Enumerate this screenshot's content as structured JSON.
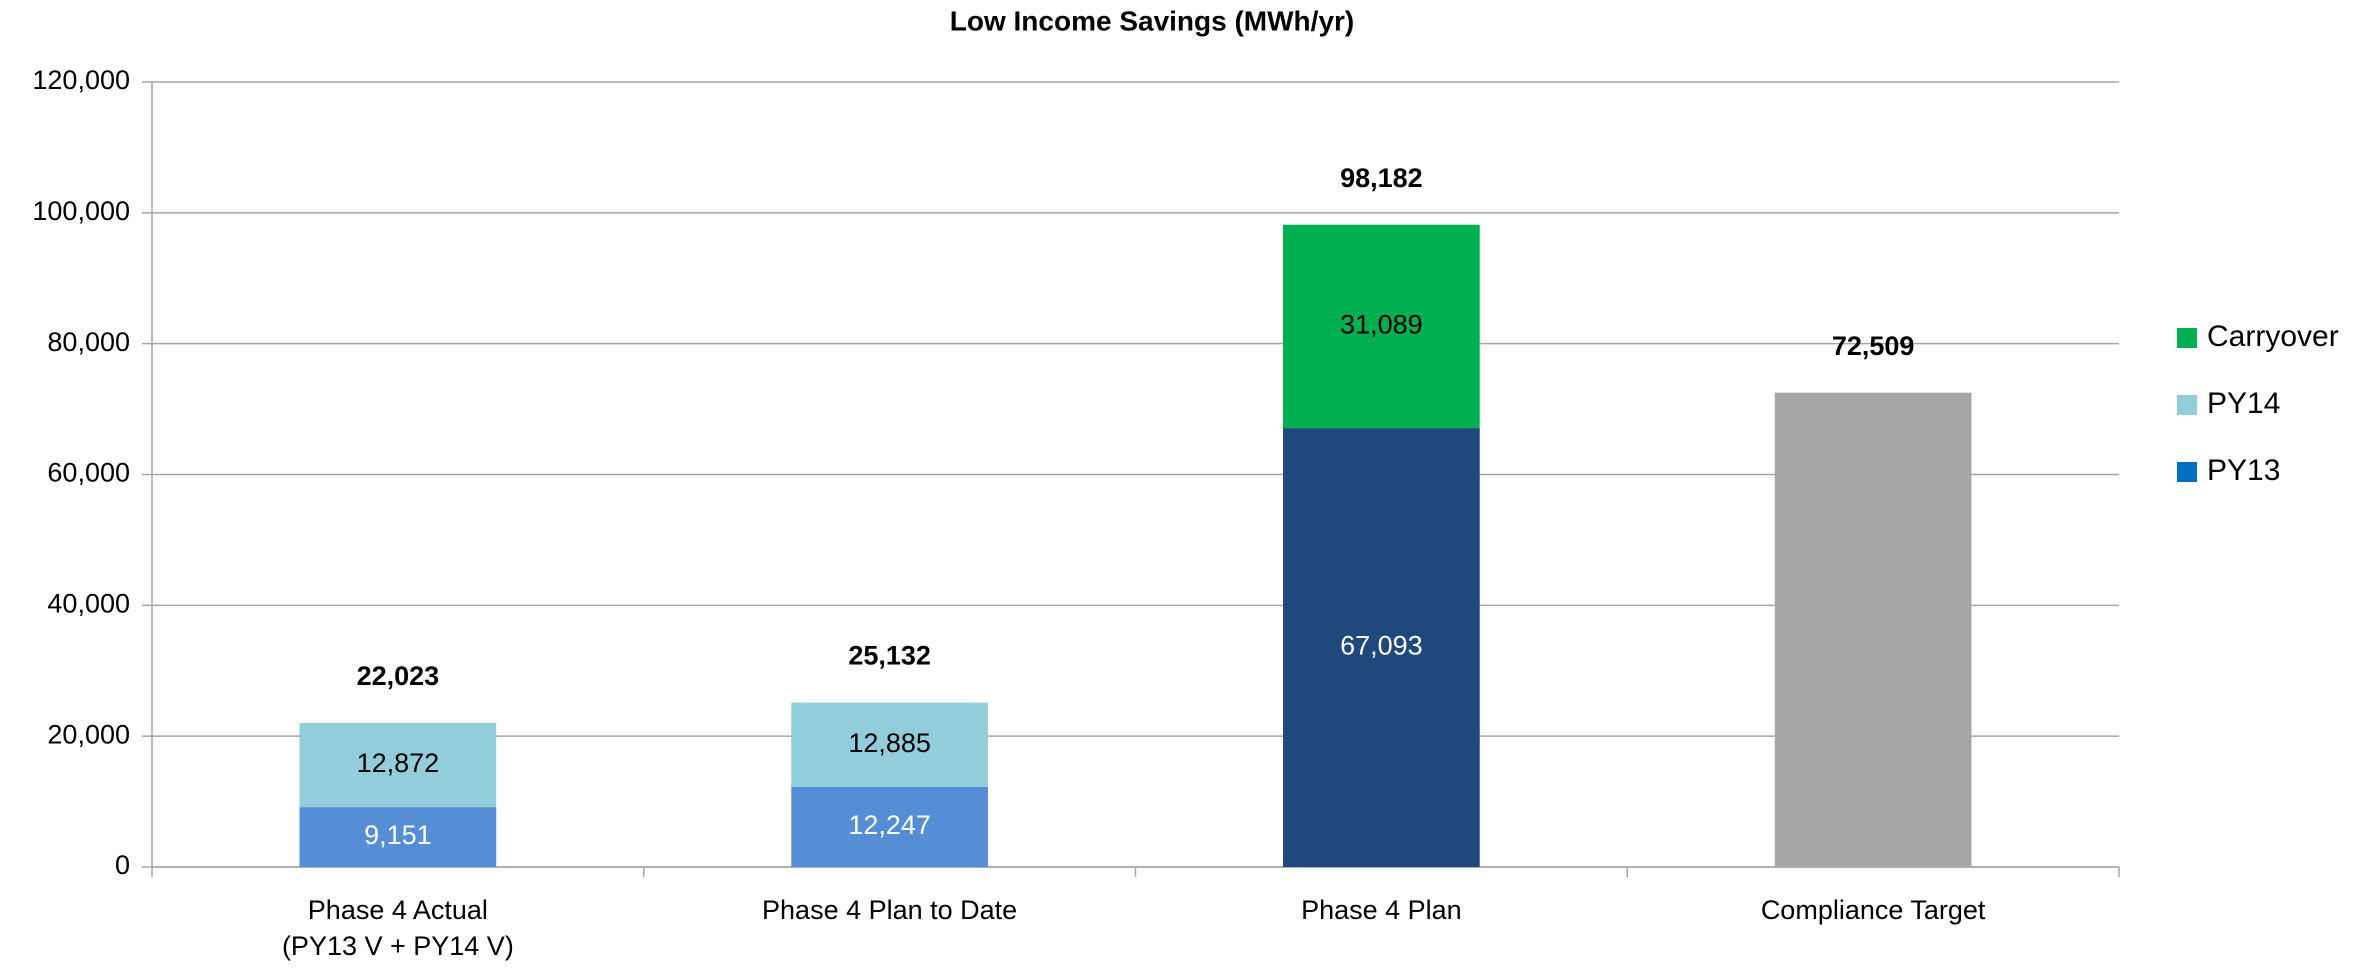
{
  "chart_data": {
    "type": "stacked_bar",
    "title": "Low Income Savings (MWh/yr)",
    "categories": [
      "Phase 4 Actual\n(PY13 V + PY14 V)",
      "Phase 4 Plan to Date",
      "Phase 4 Plan",
      "Compliance Target"
    ],
    "series": [
      {
        "name": "PY13",
        "color": "#0070c0",
        "point_colors": [
          "#558ed5",
          "#558ed5",
          "#1f497d",
          null
        ],
        "label_color": "#ffffff",
        "values": [
          9151,
          12247,
          67093,
          null
        ],
        "value_labels": [
          "9,151",
          "12,247",
          "67,093",
          null
        ]
      },
      {
        "name": "PY14",
        "color": "#92cddc",
        "label_color": "#000000",
        "values": [
          12872,
          12885,
          null,
          null
        ],
        "value_labels": [
          "12,872",
          "12,885",
          null,
          null
        ]
      },
      {
        "name": "Carryover",
        "color": "#00b050",
        "label_color": "#000000",
        "values": [
          null,
          null,
          31089,
          null
        ],
        "value_labels": [
          null,
          null,
          "31,089",
          null
        ]
      },
      {
        "color": "#a6a6a6",
        "values": [
          null,
          null,
          null,
          72509
        ]
      }
    ],
    "totals": [
      22023,
      25132,
      98182,
      72509
    ],
    "total_labels": [
      "22,023",
      "25,132",
      "98,182",
      "72,509"
    ],
    "ylim": [
      0,
      120000
    ],
    "yticks": [
      0,
      {
        "value": 20000,
        "label": "20,000"
      },
      {
        "value": 40000,
        "label": "40,000"
      },
      {
        "value": 60000,
        "label": "60,000"
      },
      {
        "value": 80000,
        "label": "80,000"
      },
      {
        "value": 100000,
        "label": "100,000"
      },
      {
        "value": 120000,
        "label": "120,000"
      }
    ],
    "grid": true,
    "legend": "right"
  }
}
